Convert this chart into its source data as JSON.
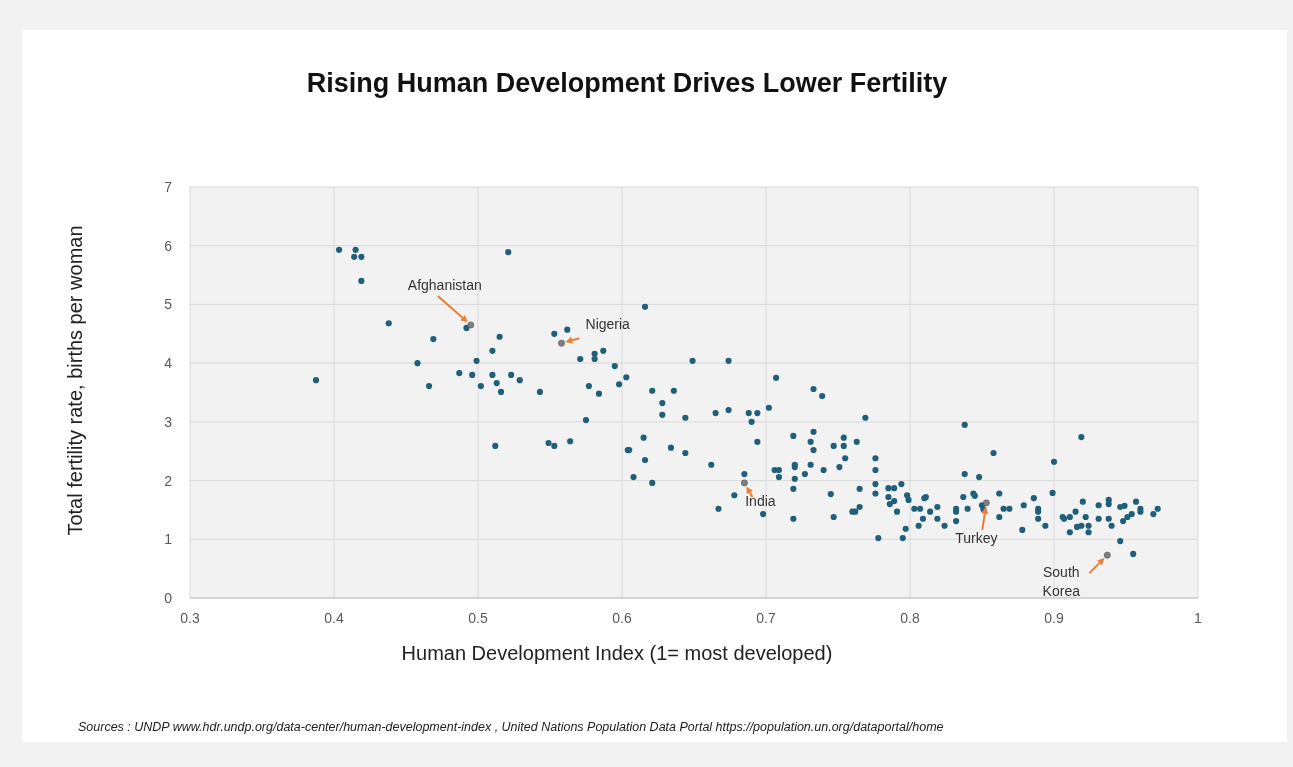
{
  "chart_data": {
    "type": "scatter",
    "title": "Rising Human Development Drives Lower Fertility",
    "xlabel": "Human Development Index (1= most developed)",
    "ylabel": "Total fertility rate, births per woman",
    "xlim": [
      0.3,
      1
    ],
    "xticks": [
      0.3,
      0.4,
      0.5,
      0.6,
      0.7,
      0.8,
      0.9,
      1
    ],
    "ylim": [
      0,
      7
    ],
    "yticks": [
      0,
      1,
      2,
      3,
      4,
      5,
      6,
      7
    ],
    "grid": true,
    "marker": "circle",
    "series": [
      {
        "color": "#1f5f7a",
        "x": [
          0.4035,
          0.415,
          0.414,
          0.419,
          0.419,
          0.521,
          0.438,
          0.492,
          0.469,
          0.515,
          0.51,
          0.499,
          0.458,
          0.3875,
          0.487,
          0.496,
          0.51,
          0.523,
          0.529,
          0.513,
          0.466,
          0.502,
          0.516,
          0.543,
          0.553,
          0.562,
          0.571,
          0.581,
          0.581,
          0.587,
          0.595,
          0.603,
          0.577,
          0.584,
          0.598,
          0.575,
          0.512,
          0.549,
          0.553,
          0.564,
          0.604,
          0.616,
          0.649,
          0.674,
          0.621,
          0.636,
          0.628,
          0.628,
          0.644,
          0.665,
          0.674,
          0.688,
          0.694,
          0.69,
          0.702,
          0.707,
          0.733,
          0.739,
          0.769,
          0.615,
          0.605,
          0.616,
          0.608,
          0.621,
          0.634,
          0.644,
          0.662,
          0.694,
          0.685,
          0.678,
          0.667,
          0.698,
          0.719,
          0.719,
          0.733,
          0.731,
          0.733,
          0.72,
          0.72,
          0.731,
          0.706,
          0.709,
          0.709,
          0.72,
          0.727,
          0.719,
          0.74,
          0.751,
          0.755,
          0.747,
          0.754,
          0.754,
          0.763,
          0.745,
          0.765,
          0.747,
          0.76,
          0.762,
          0.765,
          0.776,
          0.776,
          0.776,
          0.776,
          0.778,
          0.795,
          0.785,
          0.789,
          0.794,
          0.785,
          0.786,
          0.789,
          0.791,
          0.798,
          0.799,
          0.797,
          0.803,
          0.807,
          0.811,
          0.809,
          0.806,
          0.814,
          0.819,
          0.819,
          0.824,
          0.832,
          0.832,
          0.832,
          0.837,
          0.84,
          0.838,
          0.838,
          0.848,
          0.844,
          0.845,
          0.85,
          0.851,
          0.81,
          0.919,
          0.858,
          0.9,
          0.862,
          0.865,
          0.869,
          0.862,
          0.879,
          0.878,
          0.886,
          0.889,
          0.889,
          0.889,
          0.894,
          0.899,
          0.906,
          0.907,
          0.911,
          0.915,
          0.92,
          0.911,
          0.916,
          0.919,
          0.922,
          0.924,
          0.924,
          0.931,
          0.931,
          0.938,
          0.938,
          0.938,
          0.94,
          0.946,
          0.949,
          0.948,
          0.951,
          0.954,
          0.957,
          0.96,
          0.96,
          0.969,
          0.972,
          0.946,
          0.955
        ],
        "values": [
          5.93,
          5.93,
          5.81,
          5.81,
          5.4,
          5.89,
          4.68,
          4.6,
          4.41,
          4.45,
          4.21,
          4.04,
          4.0,
          3.71,
          3.83,
          3.8,
          3.8,
          3.8,
          3.71,
          3.66,
          3.61,
          3.61,
          3.51,
          3.51,
          4.5,
          4.57,
          4.07,
          4.16,
          4.07,
          4.21,
          3.95,
          3.76,
          3.61,
          3.48,
          3.64,
          3.03,
          2.59,
          2.64,
          2.59,
          2.67,
          2.52,
          4.96,
          4.04,
          4.04,
          3.53,
          3.53,
          3.32,
          3.12,
          3.07,
          3.15,
          3.2,
          3.15,
          3.15,
          3.0,
          3.24,
          3.75,
          3.56,
          3.44,
          3.07,
          2.73,
          2.52,
          2.35,
          2.06,
          1.96,
          2.56,
          2.47,
          2.27,
          2.66,
          2.11,
          1.75,
          1.52,
          1.43,
          1.35,
          2.76,
          2.83,
          2.66,
          2.52,
          2.27,
          2.23,
          2.27,
          2.18,
          2.18,
          2.06,
          2.03,
          2.11,
          1.86,
          2.18,
          2.23,
          2.38,
          2.59,
          2.73,
          2.59,
          2.66,
          1.77,
          1.86,
          1.38,
          1.47,
          1.47,
          1.55,
          2.38,
          2.18,
          1.94,
          1.78,
          1.02,
          1.02,
          1.87,
          1.87,
          1.94,
          1.72,
          1.6,
          1.65,
          1.47,
          1.75,
          1.67,
          1.18,
          1.52,
          1.52,
          1.72,
          1.35,
          1.23,
          1.47,
          1.55,
          1.35,
          1.23,
          1.52,
          1.47,
          1.31,
          1.72,
          1.52,
          2.95,
          2.11,
          2.06,
          1.78,
          1.74,
          1.58,
          1.51,
          1.7,
          2.74,
          2.47,
          2.32,
          1.78,
          1.52,
          1.52,
          1.38,
          1.58,
          1.16,
          1.7,
          1.52,
          1.47,
          1.35,
          1.23,
          1.79,
          1.38,
          1.35,
          1.38,
          1.47,
          1.64,
          1.12,
          1.21,
          1.23,
          1.38,
          1.23,
          1.12,
          1.58,
          1.35,
          1.67,
          1.6,
          1.35,
          1.23,
          1.55,
          1.57,
          1.31,
          1.38,
          1.43,
          1.64,
          1.52,
          1.47,
          1.43,
          1.52,
          0.97,
          0.75
        ]
      },
      {
        "color": "#808080",
        "x": [
          0.495,
          0.558,
          0.685,
          0.853,
          0.937
        ],
        "values": [
          4.65,
          4.34,
          1.96,
          1.62,
          0.73
        ]
      }
    ],
    "annotations": [
      {
        "text": "Afghanistan",
        "x": 0.495,
        "y": 4.65
      },
      {
        "text": "Nigeria",
        "x": 0.558,
        "y": 4.34
      },
      {
        "text": "India",
        "x": 0.685,
        "y": 1.96
      },
      {
        "text": "Turkey",
        "x": 0.853,
        "y": 1.62
      },
      {
        "text": "South Korea",
        "x": 0.937,
        "y": 0.73
      },
      "Sources : UNDP www.hdr.undp.org/data-center/human-development-index , United Nations Population Data Portal  https://population.un.org/dataportal/home"
    ]
  }
}
